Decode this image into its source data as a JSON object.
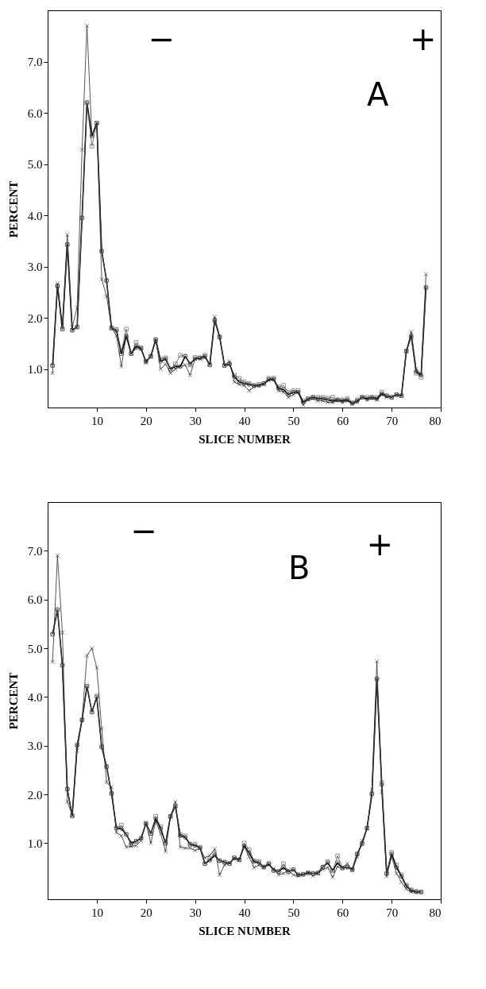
{
  "chart_data": [
    {
      "type": "line",
      "xlabel": "SLICE NUMBER",
      "ylabel": "PERCENT",
      "annotations": [
        "−",
        "+",
        "A"
      ],
      "x": [
        1,
        2,
        3,
        4,
        5,
        6,
        7,
        8,
        9,
        10,
        11,
        12,
        13,
        14,
        15,
        16,
        17,
        18,
        19,
        20,
        21,
        22,
        23,
        24,
        25,
        26,
        27,
        28,
        29,
        30,
        31,
        32,
        33,
        34,
        35,
        36,
        37,
        38,
        39,
        40,
        41,
        42,
        43,
        44,
        45,
        46,
        47,
        48,
        49,
        50,
        51,
        52,
        53,
        54,
        55,
        56,
        57,
        58,
        59,
        60,
        61,
        62,
        63,
        64,
        65,
        66,
        67,
        68,
        69,
        70,
        71,
        72,
        73,
        74,
        75,
        76,
        77
      ],
      "xlim": [
        0,
        80
      ],
      "xticks": [
        10,
        20,
        30,
        40,
        50,
        60,
        70,
        80
      ],
      "ylim": [
        0.25,
        8.0
      ],
      "yticks": [
        {
          "value": 1,
          "label": "1.0"
        },
        {
          "value": 2,
          "label": "2.0"
        },
        {
          "value": 3,
          "label": "3.0"
        },
        {
          "value": 4,
          "label": "4.0"
        },
        {
          "value": 5,
          "label": "5.0"
        },
        {
          "value": 6,
          "label": "6.0"
        },
        {
          "value": 7,
          "label": "7.0"
        }
      ],
      "grid": false,
      "line_style": "solid",
      "series": [
        {
          "color": "#000000",
          "marker": "circle",
          "values": [
            1.07,
            2.62,
            1.78,
            3.43,
            1.76,
            1.82,
            3.95,
            6.2,
            5.55,
            5.8,
            3.3,
            2.72,
            1.8,
            1.75,
            1.3,
            1.65,
            1.3,
            1.45,
            1.4,
            1.15,
            1.25,
            1.58,
            1.15,
            1.2,
            1.0,
            1.05,
            1.05,
            1.25,
            1.1,
            1.2,
            1.22,
            1.25,
            1.08,
            1.95,
            1.63,
            1.07,
            1.1,
            0.85,
            0.75,
            0.72,
            0.7,
            0.68,
            0.68,
            0.72,
            0.8,
            0.8,
            0.62,
            0.6,
            0.5,
            0.55,
            0.55,
            0.35,
            0.42,
            0.45,
            0.42,
            0.42,
            0.4,
            0.38,
            0.4,
            0.38,
            0.4,
            0.33,
            0.38,
            0.45,
            0.42,
            0.45,
            0.42,
            0.52,
            0.48,
            0.45,
            0.5,
            0.48,
            1.35,
            1.65,
            0.95,
            0.88,
            2.6
          ]
        },
        {
          "color": "#555555",
          "marker": "square",
          "values": [
            1.07,
            2.62,
            1.78,
            3.43,
            1.76,
            1.82,
            3.95,
            6.2,
            5.35,
            5.8,
            3.3,
            2.73,
            1.8,
            1.77,
            1.35,
            1.78,
            1.3,
            1.52,
            1.42,
            1.15,
            1.25,
            1.57,
            1.2,
            1.22,
            1.0,
            1.1,
            1.27,
            1.25,
            1.08,
            1.23,
            1.22,
            1.27,
            1.08,
            1.95,
            1.63,
            1.07,
            1.1,
            0.88,
            0.82,
            0.75,
            0.72,
            0.68,
            0.7,
            0.72,
            0.82,
            0.82,
            0.65,
            0.68,
            0.55,
            0.58,
            0.58,
            0.38,
            0.42,
            0.45,
            0.45,
            0.45,
            0.43,
            0.45,
            0.4,
            0.4,
            0.42,
            0.35,
            0.4,
            0.45,
            0.45,
            0.45,
            0.45,
            0.55,
            0.48,
            0.45,
            0.5,
            0.48,
            1.35,
            1.62,
            0.92,
            0.84,
            2.58
          ]
        },
        {
          "color": "#2b2b2b",
          "marker": "cross",
          "values": [
            0.92,
            2.67,
            1.85,
            3.62,
            1.82,
            2.2,
            5.28,
            7.7,
            5.55,
            5.8,
            2.75,
            2.42,
            1.8,
            1.65,
            1.05,
            1.65,
            1.3,
            1.4,
            1.4,
            1.12,
            1.25,
            1.55,
            1.0,
            1.1,
            0.92,
            1.0,
            1.05,
            1.08,
            0.88,
            1.2,
            1.2,
            1.22,
            1.1,
            2.02,
            1.62,
            1.07,
            1.15,
            0.75,
            0.7,
            0.68,
            0.58,
            0.65,
            0.68,
            0.7,
            0.78,
            0.8,
            0.58,
            0.55,
            0.45,
            0.5,
            0.55,
            0.3,
            0.4,
            0.42,
            0.38,
            0.38,
            0.35,
            0.35,
            0.38,
            0.35,
            0.38,
            0.32,
            0.35,
            0.45,
            0.4,
            0.42,
            0.4,
            0.5,
            0.45,
            0.45,
            0.5,
            0.48,
            1.35,
            1.73,
            1.0,
            0.9,
            2.85
          ]
        }
      ]
    },
    {
      "type": "line",
      "xlabel": "SLICE NUMBER",
      "ylabel": "PERCENT",
      "annotations": [
        "−",
        "B",
        "+"
      ],
      "x": [
        1,
        2,
        3,
        4,
        5,
        6,
        7,
        8,
        9,
        10,
        11,
        12,
        13,
        14,
        15,
        16,
        17,
        18,
        19,
        20,
        21,
        22,
        23,
        24,
        25,
        26,
        27,
        28,
        29,
        30,
        31,
        32,
        33,
        34,
        35,
        36,
        37,
        38,
        39,
        40,
        41,
        42,
        43,
        44,
        45,
        46,
        47,
        48,
        49,
        50,
        51,
        52,
        53,
        54,
        55,
        56,
        57,
        58,
        59,
        60,
        61,
        62,
        63,
        64,
        65,
        66,
        67,
        68,
        69,
        70,
        71,
        72,
        73,
        74,
        75,
        76
      ],
      "xlim": [
        0,
        80
      ],
      "xticks": [
        10,
        20,
        30,
        40,
        50,
        60,
        70,
        80
      ],
      "ylim": [
        -0.15,
        8.0
      ],
      "yticks": [
        {
          "value": 1,
          "label": "1.0"
        },
        {
          "value": 2,
          "label": "2.0"
        },
        {
          "value": 3,
          "label": "3.0"
        },
        {
          "value": 4,
          "label": "4.0"
        },
        {
          "value": 5,
          "label": "5.0"
        },
        {
          "value": 6,
          "label": "6.0"
        },
        {
          "value": 7,
          "label": "7.0"
        }
      ],
      "grid": false,
      "line_style": "solid",
      "series": [
        {
          "color": "#000000",
          "marker": "circle",
          "values": [
            5.29,
            5.79,
            4.65,
            2.11,
            1.56,
            3.0,
            3.53,
            4.22,
            3.69,
            4.0,
            2.97,
            2.57,
            2.02,
            1.31,
            1.3,
            1.18,
            1.0,
            1.04,
            1.1,
            1.4,
            1.2,
            1.5,
            1.3,
            1.0,
            1.55,
            1.76,
            1.15,
            1.12,
            0.98,
            0.95,
            0.91,
            0.58,
            0.65,
            0.75,
            0.64,
            0.61,
            0.58,
            0.7,
            0.66,
            0.95,
            0.8,
            0.62,
            0.6,
            0.51,
            0.58,
            0.44,
            0.42,
            0.5,
            0.41,
            0.46,
            0.35,
            0.36,
            0.39,
            0.38,
            0.39,
            0.51,
            0.6,
            0.44,
            0.6,
            0.49,
            0.51,
            0.46,
            0.78,
            0.99,
            1.31,
            2.01,
            4.37,
            2.2,
            0.38,
            0.78,
            0.5,
            0.32,
            0.12,
            0.03,
            0.0,
            0.0
          ]
        },
        {
          "color": "#555555",
          "marker": "square",
          "values": [
            5.29,
            5.79,
            4.65,
            2.11,
            1.56,
            3.02,
            3.53,
            4.22,
            3.69,
            4.02,
            2.99,
            2.57,
            2.02,
            1.31,
            1.37,
            1.18,
            0.96,
            1.04,
            1.1,
            1.4,
            1.2,
            1.55,
            1.34,
            1.0,
            1.55,
            1.76,
            1.18,
            1.15,
            0.98,
            0.98,
            0.91,
            0.58,
            0.68,
            0.78,
            0.64,
            0.61,
            0.58,
            0.7,
            0.66,
            1.0,
            0.87,
            0.64,
            0.62,
            0.51,
            0.58,
            0.44,
            0.42,
            0.58,
            0.41,
            0.46,
            0.35,
            0.36,
            0.39,
            0.38,
            0.39,
            0.51,
            0.62,
            0.44,
            0.74,
            0.49,
            0.51,
            0.46,
            0.78,
            0.99,
            1.31,
            2.01,
            4.37,
            2.24,
            0.38,
            0.81,
            0.55,
            0.35,
            0.14,
            0.04,
            0.01,
            0.0
          ]
        },
        {
          "color": "#2b2b2b",
          "marker": "cross",
          "values": [
            4.72,
            6.9,
            5.32,
            1.85,
            1.58,
            2.9,
            3.53,
            4.85,
            5.0,
            4.6,
            3.35,
            2.25,
            2.15,
            1.22,
            1.15,
            0.92,
            0.94,
            0.95,
            1.05,
            1.42,
            1.0,
            1.45,
            1.2,
            0.83,
            1.55,
            1.85,
            0.92,
            0.9,
            0.9,
            0.85,
            0.9,
            0.7,
            0.75,
            0.88,
            0.35,
            0.55,
            0.6,
            0.68,
            0.65,
            0.93,
            0.72,
            0.5,
            0.55,
            0.5,
            0.55,
            0.48,
            0.35,
            0.38,
            0.45,
            0.35,
            0.33,
            0.36,
            0.4,
            0.33,
            0.38,
            0.46,
            0.5,
            0.3,
            0.52,
            0.5,
            0.58,
            0.44,
            0.72,
            1.05,
            1.3,
            2.1,
            4.73,
            2.05,
            0.32,
            0.72,
            0.38,
            0.2,
            0.06,
            0.0,
            0.0,
            0.0
          ]
        }
      ]
    }
  ]
}
